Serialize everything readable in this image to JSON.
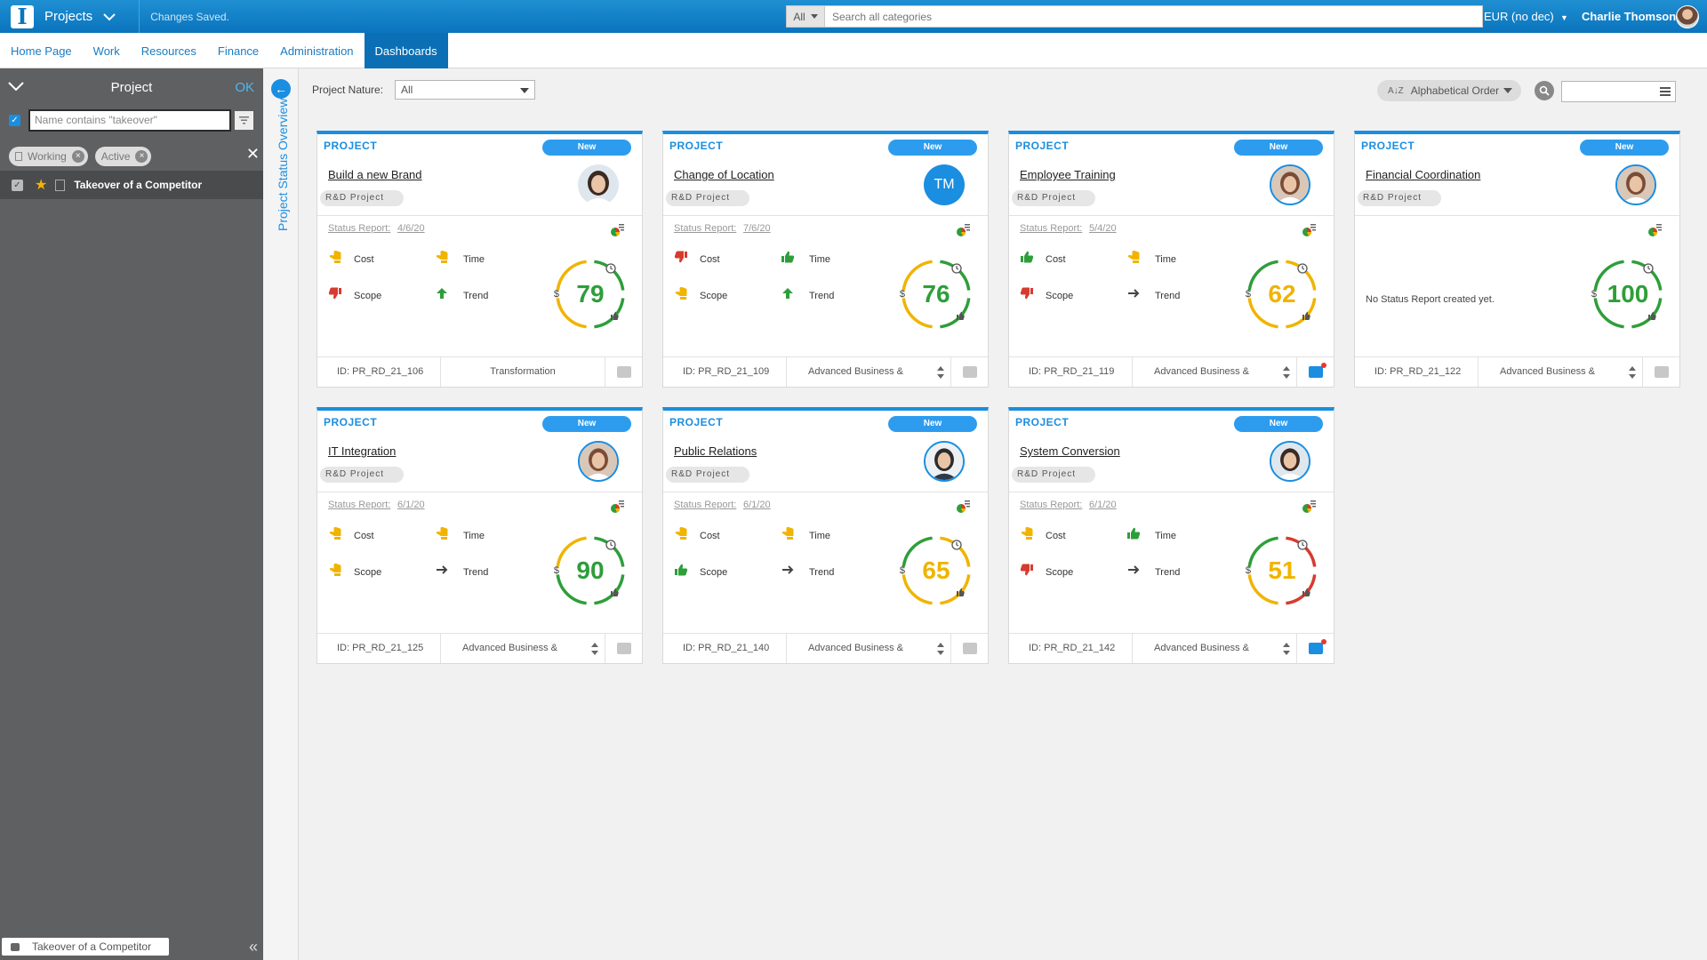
{
  "topbar": {
    "app_title": "Projects",
    "saved_status": "Changes Saved.",
    "search_scope": "All",
    "search_placeholder": "Search all categories",
    "currency": "EUR (no dec)",
    "user_name": "Charlie Thomson"
  },
  "nav": {
    "tabs": [
      {
        "label": "Home Page"
      },
      {
        "label": "Work"
      },
      {
        "label": "Resources"
      },
      {
        "label": "Finance"
      },
      {
        "label": "Administration"
      },
      {
        "label": "Dashboards",
        "active": true
      }
    ]
  },
  "left_panel": {
    "title": "Project",
    "ok_label": "OK",
    "filter_text": "Name contains \"takeover\"",
    "chips": [
      {
        "label": "Working"
      },
      {
        "label": "Active"
      }
    ],
    "items": [
      {
        "label": "Takeover of a Competitor"
      }
    ],
    "footer_tab": "Takeover of a Competitor"
  },
  "side_label": "Project Status Overview",
  "toolbar": {
    "nature_label": "Project Nature:",
    "nature_value": "All",
    "sort_label": "Alphabetical Order"
  },
  "common": {
    "kind": "PROJECT",
    "badge": "New",
    "type": "R&D Project",
    "sr_label": "Status Report:",
    "cost_label": "Cost",
    "time_label": "Time",
    "scope_label": "Scope",
    "trend_label": "Trend",
    "dollar": "$",
    "no_report": "No Status Report created yet."
  },
  "colors": {
    "accent": "#1a8ee0",
    "good": "#2e9e3a",
    "warn": "#f0b400",
    "bad": "#d63b2f"
  },
  "cards": [
    {
      "title": "Build a new Brand",
      "sr_date": "4/6/20",
      "score": "79",
      "id": "ID: PR_RD_21_106",
      "category": "Transformation",
      "avatar": "avatar-woman-dark",
      "cost": "warn",
      "time": "warn",
      "scope": "bad",
      "trend": "up",
      "chat_active": false
    },
    {
      "title": "Change of Location",
      "sr_date": "7/6/20",
      "score": "76",
      "id": "ID: PR_RD_21_109",
      "category": "Advanced Business &",
      "initials": "TM",
      "cost": "bad",
      "time": "good",
      "scope": "warn",
      "trend": "up",
      "chat_active": false
    },
    {
      "title": "Employee Training",
      "sr_date": "5/4/20",
      "score": "62",
      "id": "ID: PR_RD_21_119",
      "category": "Advanced Business &",
      "avatar": "avatar-woman-light",
      "cost": "good",
      "time": "warn",
      "scope": "bad",
      "trend": "flat",
      "chat_active": true
    },
    {
      "title": "Financial Coordination",
      "score": "100",
      "id": "ID: PR_RD_21_122",
      "category": "Advanced Business &",
      "avatar": "avatar-woman-light",
      "no_report": true,
      "chat_active": false
    },
    {
      "title": "IT Integration",
      "sr_date": "6/1/20",
      "score": "90",
      "id": "ID: PR_RD_21_125",
      "category": "Advanced Business &",
      "avatar": "avatar-woman-light",
      "cost": "warn",
      "time": "warn",
      "scope": "warn",
      "trend": "flat",
      "chat_active": false
    },
    {
      "title": "Public Relations",
      "sr_date": "6/1/20",
      "score": "65",
      "id": "ID: PR_RD_21_140",
      "category": "Advanced Business &",
      "avatar": "avatar-man-suit",
      "cost": "warn",
      "time": "warn",
      "scope": "good",
      "trend": "flat",
      "chat_active": false
    },
    {
      "title": "System Conversion",
      "sr_date": "6/1/20",
      "score": "51",
      "id": "ID: PR_RD_21_142",
      "category": "Advanced Business &",
      "avatar": "avatar-woman-dark",
      "cost": "warn",
      "time": "good",
      "scope": "bad",
      "trend": "flat",
      "chat_active": true
    }
  ]
}
